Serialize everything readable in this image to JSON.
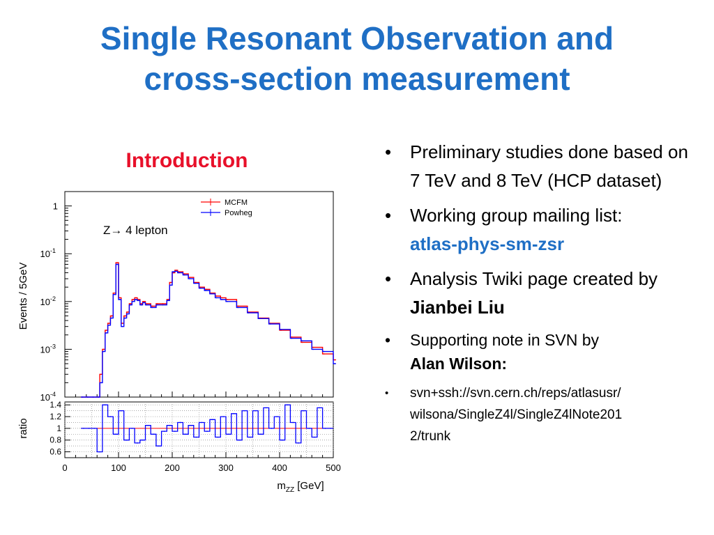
{
  "slide": {
    "title_line1": "Single Resonant Observation and",
    "title_line2": "cross-section measurement",
    "section_heading": "Introduction"
  },
  "bullets": [
    {
      "text": "Preliminary studies done based on 7 TeV and 8 TeV (HCP dataset)"
    },
    {
      "text": "Working group mailing list:",
      "link": "atlas-phys-sm-zsr"
    },
    {
      "text": "Analysis Twiki page created by",
      "bold": "Jianbei Liu"
    },
    {
      "text": "Supporting note in SVN by",
      "bold": "Alan Wilson:"
    },
    {
      "text": "svn+ssh://svn.cern.ch/reps/atlasusr/",
      "text2": "wilsona/SingleZ4l/SingleZ4lNote201",
      "text3": "2/trunk"
    }
  ],
  "colors": {
    "title": "#1f6fc5",
    "heading": "#e8102a",
    "mcfm": "#ff0000",
    "powheg": "#0000ff"
  },
  "chart_data": {
    "type": "line",
    "annotation": "Z→ 4 lepton",
    "xlabel": "m_ZZ [GeV]",
    "ylabel": "Events / 5GeV",
    "ratio_ylabel": "ratio",
    "xlim": [
      0,
      500
    ],
    "ylim": [
      0.0001,
      2
    ],
    "log_y": true,
    "x_ticks": [
      "0",
      "100",
      "200",
      "300",
      "400",
      "500"
    ],
    "y_ticks": [
      "1",
      "10^-1",
      "10^-2",
      "10^-3",
      "10^-4"
    ],
    "ratio_ylim": [
      0.5,
      1.45
    ],
    "ratio_ticks": [
      "1.4",
      "1.2",
      "1",
      "0.8",
      "0.6"
    ],
    "legend_position": "top-right",
    "series": [
      {
        "name": "MCFM",
        "color": "#ff0000",
        "x": [
          30,
          40,
          50,
          60,
          65,
          70,
          75,
          80,
          85,
          90,
          95,
          100,
          105,
          110,
          115,
          120,
          125,
          130,
          135,
          140,
          145,
          150,
          160,
          170,
          180,
          190,
          195,
          200,
          205,
          210,
          220,
          230,
          240,
          250,
          260,
          270,
          280,
          290,
          300,
          320,
          340,
          360,
          380,
          400,
          420,
          440,
          460,
          480,
          500
        ],
        "y": [
          0.0001,
          0.0001,
          0.0001,
          0.0001,
          0.0003,
          0.001,
          0.0025,
          0.0035,
          0.005,
          0.015,
          0.065,
          0.012,
          0.0035,
          0.005,
          0.006,
          0.009,
          0.011,
          0.012,
          0.011,
          0.009,
          0.01,
          0.009,
          0.008,
          0.009,
          0.009,
          0.011,
          0.025,
          0.04,
          0.045,
          0.042,
          0.038,
          0.032,
          0.025,
          0.02,
          0.018,
          0.015,
          0.013,
          0.012,
          0.011,
          0.008,
          0.006,
          0.0045,
          0.0035,
          0.0025,
          0.0018,
          0.0014,
          0.0011,
          0.0008,
          0.0006
        ]
      },
      {
        "name": "Powheg",
        "color": "#0000ff",
        "x": [
          30,
          40,
          50,
          60,
          65,
          70,
          75,
          80,
          85,
          90,
          95,
          100,
          105,
          110,
          115,
          120,
          125,
          130,
          135,
          140,
          145,
          150,
          160,
          170,
          180,
          190,
          195,
          200,
          205,
          210,
          220,
          230,
          240,
          250,
          260,
          270,
          280,
          290,
          300,
          320,
          340,
          360,
          380,
          400,
          420,
          440,
          460,
          480,
          500
        ],
        "y": [
          0.0001,
          0.0001,
          0.0001,
          0.0001,
          0.0002,
          0.0009,
          0.0022,
          0.0032,
          0.0045,
          0.014,
          0.06,
          0.011,
          0.003,
          0.0045,
          0.0055,
          0.0085,
          0.01,
          0.011,
          0.0105,
          0.0085,
          0.0095,
          0.0085,
          0.0075,
          0.0085,
          0.0085,
          0.0105,
          0.022,
          0.042,
          0.043,
          0.04,
          0.036,
          0.03,
          0.024,
          0.019,
          0.017,
          0.0145,
          0.012,
          0.011,
          0.01,
          0.0075,
          0.0058,
          0.0044,
          0.0034,
          0.0026,
          0.0017,
          0.0015,
          0.001,
          0.0009,
          0.0005
        ]
      }
    ],
    "ratio": {
      "x": [
        35,
        45,
        55,
        65,
        75,
        85,
        95,
        105,
        115,
        125,
        135,
        145,
        155,
        165,
        175,
        185,
        195,
        205,
        215,
        225,
        235,
        245,
        255,
        265,
        275,
        285,
        295,
        305,
        315,
        325,
        335,
        345,
        355,
        365,
        375,
        385,
        395,
        405,
        415,
        425,
        435,
        445,
        455,
        465,
        475,
        485,
        495
      ],
      "y": [
        1.0,
        1.0,
        1.0,
        0.6,
        1.4,
        1.2,
        0.9,
        1.3,
        0.8,
        1.0,
        0.75,
        0.8,
        1.05,
        0.9,
        0.7,
        0.95,
        1.05,
        0.95,
        1.1,
        0.9,
        1.05,
        0.85,
        1.1,
        0.95,
        1.15,
        0.85,
        1.2,
        0.9,
        1.25,
        0.8,
        1.3,
        0.85,
        1.3,
        0.9,
        1.35,
        1.0,
        1.2,
        0.8,
        1.4,
        1.1,
        0.75,
        1.3,
        1.0,
        0.85,
        1.35,
        1.0,
        1.0
      ]
    }
  }
}
